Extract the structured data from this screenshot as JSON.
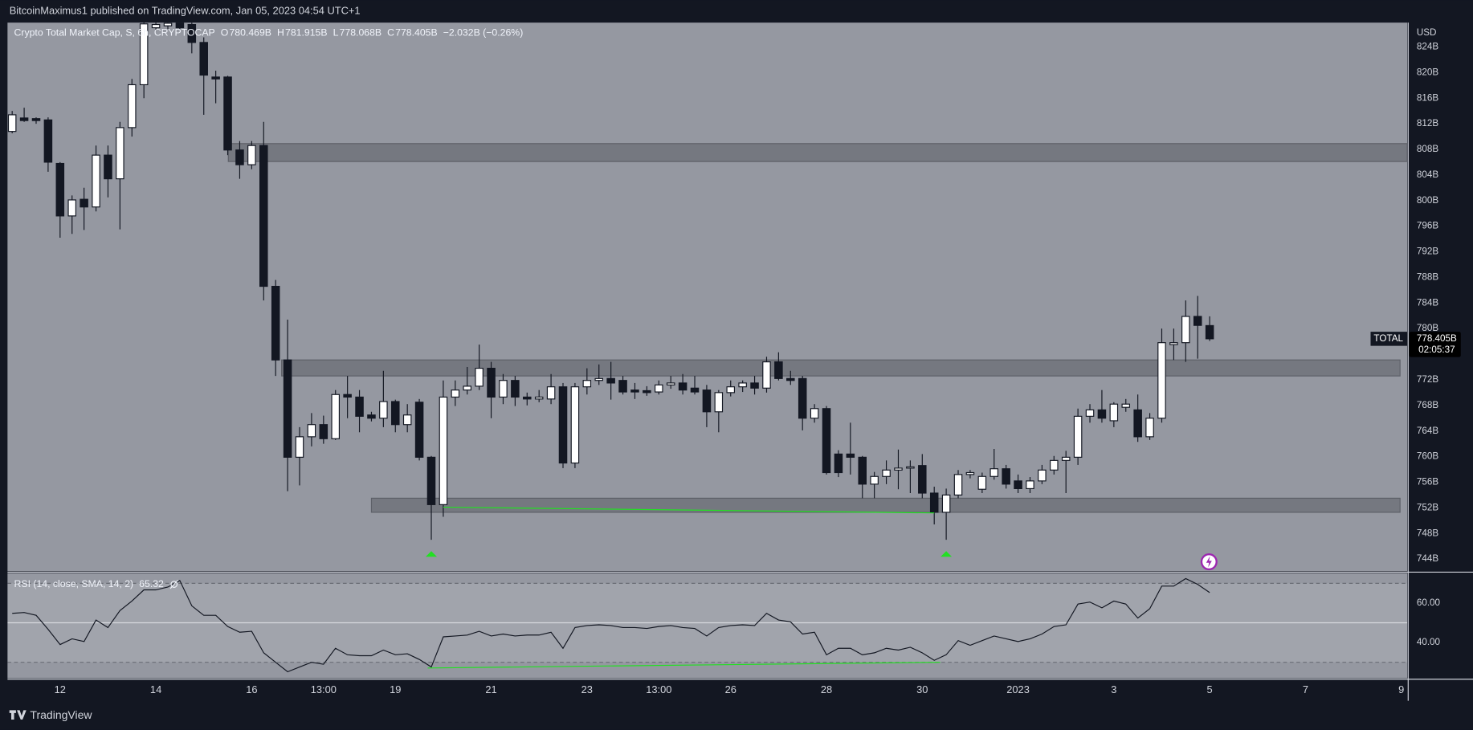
{
  "header": {
    "text": "BitcoinMaximus1 published on TradingView.com, Jan 05, 2023 04:54 UTC+1"
  },
  "footer": {
    "text": "TradingView"
  },
  "chart_data": [
    {
      "type": "candlestick",
      "title": "Crypto Total Market Cap, S, 6h, CRYPTOCAP",
      "legend_fields": [
        {
          "label": "O",
          "value": "780.469B"
        },
        {
          "label": "H",
          "value": "781.915B"
        },
        {
          "label": "L",
          "value": "778.068B"
        },
        {
          "label": "C",
          "value": "778.405B"
        }
      ],
      "change": "−2.032B (−0.26%)",
      "open": [
        810.8,
        812.9,
        812.8,
        812.6,
        805.8,
        797.6,
        800.2,
        799.0,
        807.1,
        803.4,
        811.4,
        818.1,
        827.0,
        827.3,
        827.8,
        827.5,
        824.7,
        819.3,
        819.3,
        807.9,
        805.6,
        808.6,
        786.6,
        775.1,
        759.9,
        763.1,
        765.0,
        762.8,
        769.7,
        769.3,
        766.5,
        766.0,
        768.6,
        765.0,
        768.5,
        759.9,
        752.5,
        769.3,
        770.4,
        771.0,
        773.8,
        769.3,
        771.9,
        769.3,
        769.0,
        769.0,
        770.9,
        759.0,
        770.9,
        771.9,
        772.2,
        771.9,
        770.4,
        770.3,
        770.1,
        771.2,
        771.5,
        770.7,
        770.4,
        767.0,
        770.0,
        770.9,
        771.5,
        770.7,
        774.8,
        772.2,
        772.2,
        766.0,
        767.5,
        760.4,
        760.4,
        759.9,
        755.7,
        756.9,
        757.9,
        758.2,
        758.6,
        754.3,
        751.3,
        754.0,
        757.2,
        754.9,
        756.9,
        758.1,
        756.2,
        755.0,
        756.2,
        757.9,
        759.4,
        759.9,
        766.3,
        767.3,
        765.6,
        767.7,
        767.3,
        763.1,
        766.0,
        777.5,
        777.8,
        781.9,
        780.469
      ],
      "high": [
        814.0,
        814.5,
        813.0,
        813.0,
        806.0,
        800.8,
        802.0,
        808.6,
        808.6,
        812.3,
        819.0,
        827.8,
        827.8,
        827.8,
        827.8,
        827.8,
        825.5,
        820.3,
        819.5,
        809.3,
        809.3,
        812.3,
        787.6,
        781.4,
        764.6,
        766.8,
        766.4,
        770.4,
        772.6,
        770.4,
        767.0,
        773.4,
        768.9,
        768.2,
        769.0,
        760.1,
        771.9,
        771.9,
        774.0,
        777.5,
        774.8,
        772.9,
        772.6,
        770.0,
        770.4,
        772.9,
        771.5,
        771.5,
        773.8,
        774.4,
        774.8,
        772.6,
        771.5,
        771.0,
        771.9,
        772.6,
        772.9,
        772.6,
        771.2,
        770.4,
        771.9,
        771.9,
        772.6,
        775.6,
        776.3,
        773.4,
        772.6,
        768.2,
        767.9,
        761.0,
        765.3,
        760.1,
        757.6,
        759.4,
        761.1,
        759.4,
        760.4,
        755.3,
        755.0,
        757.9,
        757.9,
        757.5,
        761.2,
        758.7,
        757.2,
        756.8,
        758.7,
        760.1,
        760.9,
        767.5,
        768.2,
        770.4,
        768.5,
        769.0,
        769.7,
        766.8,
        780.0,
        780.0,
        784.4,
        785.1,
        781.915
      ],
      "low": [
        810.5,
        812.3,
        812.0,
        804.5,
        794.2,
        794.8,
        795.4,
        798.3,
        800.5,
        795.5,
        810.0,
        816.0,
        826.5,
        826.8,
        826.8,
        823.0,
        813.4,
        815.2,
        807.1,
        803.4,
        804.9,
        784.4,
        772.6,
        754.6,
        755.5,
        761.6,
        762.0,
        762.6,
        766.0,
        763.8,
        765.5,
        764.6,
        763.8,
        763.8,
        759.4,
        747.0,
        750.6,
        767.9,
        769.7,
        770.4,
        766.0,
        768.2,
        767.9,
        768.0,
        768.5,
        768.2,
        758.2,
        758.2,
        769.7,
        771.2,
        768.9,
        769.7,
        769.0,
        769.5,
        769.7,
        770.6,
        769.7,
        769.7,
        764.6,
        763.8,
        769.4,
        770.1,
        769.7,
        770.0,
        771.9,
        771.2,
        764.1,
        765.3,
        757.2,
        756.8,
        757.2,
        753.5,
        753.5,
        755.7,
        754.9,
        754.3,
        753.5,
        749.4,
        747.0,
        753.5,
        756.6,
        754.3,
        756.4,
        755.0,
        754.3,
        754.3,
        755.7,
        757.2,
        754.3,
        758.7,
        765.3,
        765.3,
        764.6,
        767.0,
        762.3,
        762.6,
        765.3,
        775.1,
        774.8,
        775.3,
        778.068
      ],
      "close": [
        813.4,
        812.5,
        812.5,
        806.0,
        797.6,
        800.1,
        799.0,
        807.1,
        803.4,
        811.4,
        818.1,
        827.6,
        827.5,
        827.7,
        827.0,
        824.7,
        819.6,
        819.0,
        807.9,
        805.6,
        808.6,
        786.6,
        775.1,
        759.9,
        763.1,
        765.0,
        762.8,
        769.7,
        769.3,
        766.3,
        766.0,
        768.6,
        765.0,
        766.5,
        759.9,
        752.5,
        769.3,
        770.4,
        771.0,
        773.8,
        769.3,
        771.9,
        769.3,
        769.0,
        769.3,
        770.9,
        759.0,
        770.9,
        771.9,
        772.2,
        771.5,
        770.1,
        770.1,
        770.0,
        771.2,
        771.5,
        770.4,
        770.1,
        767.0,
        770.0,
        770.9,
        771.5,
        770.7,
        774.8,
        772.2,
        771.9,
        766.0,
        767.5,
        757.5,
        757.5,
        759.9,
        755.7,
        756.9,
        757.9,
        758.2,
        758.4,
        754.3,
        751.3,
        754.0,
        757.2,
        757.5,
        756.9,
        758.1,
        755.7,
        755.0,
        756.2,
        757.9,
        759.4,
        759.9,
        766.3,
        767.3,
        766.0,
        768.2,
        768.2,
        763.1,
        766.0,
        777.8,
        777.8,
        781.9,
        780.5,
        778.405
      ],
      "up_color": "#ffffff",
      "down_color": "#131722",
      "xlim": [
        -0.39,
        116.5
      ],
      "xticks": [
        {
          "value": 4,
          "label": "12"
        },
        {
          "value": 12,
          "label": "14"
        },
        {
          "value": 20,
          "label": "16"
        },
        {
          "value": 26,
          "label": "13:00"
        },
        {
          "value": 32,
          "label": "19"
        },
        {
          "value": 40,
          "label": "21"
        },
        {
          "value": 48,
          "label": "23"
        },
        {
          "value": 54,
          "label": "13:00"
        },
        {
          "value": 60,
          "label": "26"
        },
        {
          "value": 68,
          "label": "28"
        },
        {
          "value": 76,
          "label": "30"
        },
        {
          "value": 84,
          "label": "2023"
        },
        {
          "value": 92,
          "label": "3"
        },
        {
          "value": 100,
          "label": "5"
        },
        {
          "value": 108,
          "label": "7"
        },
        {
          "value": 116,
          "label": "9"
        }
      ],
      "ylim": [
        742.1,
        827.8
      ],
      "yticks": [
        {
          "value": 744,
          "label": "744B"
        },
        {
          "value": 748,
          "label": "748B"
        },
        {
          "value": 752,
          "label": "752B"
        },
        {
          "value": 756,
          "label": "756B"
        },
        {
          "value": 760,
          "label": "760B"
        },
        {
          "value": 764,
          "label": "764B"
        },
        {
          "value": 768,
          "label": "768B"
        },
        {
          "value": 772,
          "label": "772B"
        },
        {
          "value": 776,
          "label": "776B"
        },
        {
          "value": 780,
          "label": "780B"
        },
        {
          "value": 784,
          "label": "784B"
        },
        {
          "value": 788,
          "label": "788B"
        },
        {
          "value": 792,
          "label": "792B"
        },
        {
          "value": 796,
          "label": "796B"
        },
        {
          "value": 800,
          "label": "800B"
        },
        {
          "value": 804,
          "label": "804B"
        },
        {
          "value": 808,
          "label": "808B"
        },
        {
          "value": 812,
          "label": "812B"
        },
        {
          "value": 816,
          "label": "816B"
        },
        {
          "value": 820,
          "label": "820B"
        },
        {
          "value": 824,
          "label": "824B"
        }
      ],
      "grid": false,
      "axis_unit": "USD",
      "price_tag": {
        "symbol": "TOTAL",
        "price": "778.405B",
        "countdown": "02:05:37"
      },
      "zones": [
        {
          "x": [
            18.05,
            116.5
          ],
          "y": [
            806.1,
            808.9
          ]
        },
        {
          "x": [
            22.5,
            115.9
          ],
          "y": [
            772.6,
            775.1
          ]
        },
        {
          "x": [
            30,
            115.9
          ],
          "y": [
            751.3,
            753.5
          ]
        }
      ],
      "zone_color": "#6d7078",
      "trendline": {
        "x": [
          36,
          77
        ],
        "y": [
          752.1,
          751.2
        ],
        "color": "#22e022"
      },
      "signals": {
        "x": [
          35,
          78
        ],
        "color": "#22e022"
      }
    },
    {
      "type": "line",
      "title": "RSI (14, close, SMA, 14, 2)",
      "values": [
        54.8,
        55.2,
        53.8,
        46.7,
        39.0,
        41.9,
        40.5,
        51.4,
        47.6,
        56.2,
        61.0,
        66.7,
        66.7,
        68.1,
        71.4,
        58.6,
        53.8,
        53.8,
        48.1,
        45.2,
        45.7,
        34.8,
        30.0,
        25.2,
        27.6,
        30.0,
        29.0,
        37.1,
        33.8,
        33.3,
        33.3,
        36.2,
        33.8,
        34.3,
        31.4,
        27.6,
        42.9,
        43.3,
        43.8,
        45.7,
        43.3,
        44.3,
        43.3,
        43.8,
        43.8,
        45.2,
        37.1,
        47.6,
        48.6,
        49.0,
        48.6,
        47.6,
        47.6,
        47.1,
        48.1,
        48.6,
        47.6,
        47.1,
        43.3,
        47.6,
        48.6,
        49.0,
        48.6,
        54.8,
        51.4,
        50.5,
        44.3,
        45.2,
        33.8,
        37.1,
        37.1,
        33.8,
        34.8,
        37.1,
        36.2,
        37.6,
        34.8,
        31.0,
        33.8,
        41.0,
        38.6,
        41.0,
        43.3,
        41.9,
        40.5,
        41.9,
        44.3,
        48.1,
        49.0,
        59.5,
        60.5,
        57.6,
        61.0,
        59.5,
        52.4,
        57.1,
        68.6,
        68.6,
        72.4,
        69.5,
        65.32
      ],
      "color": "#131722",
      "xlim": [
        -0.39,
        116.5
      ],
      "ylim": [
        21.9,
        75.2
      ],
      "yticks": [
        {
          "value": 40,
          "label": "40.00"
        },
        {
          "value": 60,
          "label": "60.00"
        }
      ],
      "band": [
        30,
        70
      ],
      "midline": 50,
      "trendline": {
        "x": [
          34.7,
          77.5
        ],
        "y": [
          27.1,
          30.0
        ],
        "color": "#22e022"
      }
    }
  ]
}
